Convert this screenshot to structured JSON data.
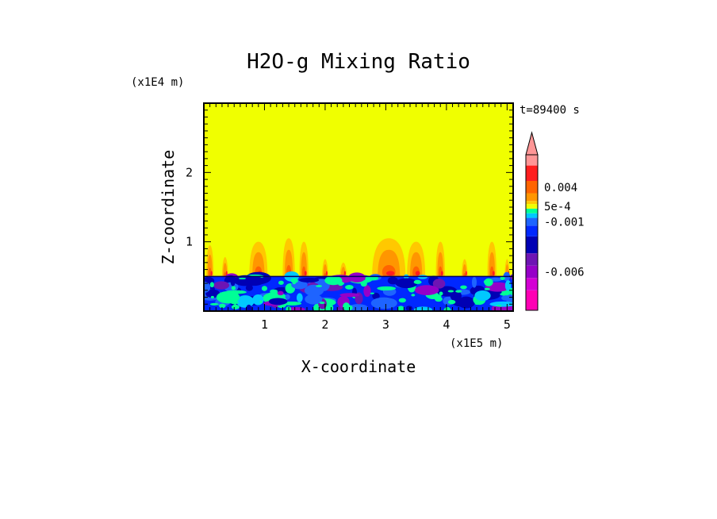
{
  "chart_data": {
    "type": "heatmap",
    "title": "H2O-g Mixing Ratio",
    "xlabel": "X-coordinate",
    "ylabel": "Z-coordinate",
    "x_scale_label": "(x1E5 m)",
    "y_scale_label": "(x1E4 m)",
    "time_label": "t=89400 s",
    "xlim": [
      0,
      5.1
    ],
    "ylim": [
      0,
      3.0
    ],
    "x_ticks": [
      1,
      2,
      3,
      4,
      5
    ],
    "y_ticks": [
      1,
      2
    ],
    "x_tick_labels": [
      "1",
      "2",
      "3",
      "4",
      "5"
    ],
    "y_tick_labels": [
      "1",
      "2"
    ],
    "background_value_color": "#f0ff00",
    "surface_layer_top": 0.5,
    "plumes": [
      {
        "x": 0.1,
        "top": 0.95,
        "width": 0.12
      },
      {
        "x": 0.35,
        "top": 0.78,
        "width": 0.1
      },
      {
        "x": 0.9,
        "top": 1.0,
        "width": 0.3
      },
      {
        "x": 1.4,
        "top": 1.05,
        "width": 0.2
      },
      {
        "x": 1.65,
        "top": 1.0,
        "width": 0.15
      },
      {
        "x": 2.0,
        "top": 0.75,
        "width": 0.1
      },
      {
        "x": 2.3,
        "top": 0.7,
        "width": 0.12
      },
      {
        "x": 3.05,
        "top": 1.05,
        "width": 0.55
      },
      {
        "x": 3.5,
        "top": 1.0,
        "width": 0.3
      },
      {
        "x": 3.9,
        "top": 1.0,
        "width": 0.15
      },
      {
        "x": 4.3,
        "top": 0.75,
        "width": 0.1
      },
      {
        "x": 4.75,
        "top": 1.0,
        "width": 0.15
      },
      {
        "x": 5.0,
        "top": 0.75,
        "width": 0.08
      }
    ],
    "colorbar": {
      "levels": [
        {
          "color": "#ff00b4",
          "label": ""
        },
        {
          "color": "#d400d4",
          "label": ""
        },
        {
          "color": "#9600c8",
          "label": "-0.006"
        },
        {
          "color": "#6e14b4",
          "label": ""
        },
        {
          "color": "#0000b4",
          "label": ""
        },
        {
          "color": "#0028ff",
          "label": ""
        },
        {
          "color": "#1e64ff",
          "label": "-0.001"
        },
        {
          "color": "#00c8ff",
          "label": ""
        },
        {
          "color": "#00ff96",
          "label": ""
        },
        {
          "color": "#f0ff00",
          "label": "5e-4"
        },
        {
          "color": "#ffc800",
          "label": ""
        },
        {
          "color": "#ff9600",
          "label": ""
        },
        {
          "color": "#ff6400",
          "label": "0.004"
        },
        {
          "color": "#ff1e1e",
          "label": ""
        },
        {
          "color": "#ff9696",
          "label": ""
        }
      ],
      "extend_max": true
    }
  }
}
